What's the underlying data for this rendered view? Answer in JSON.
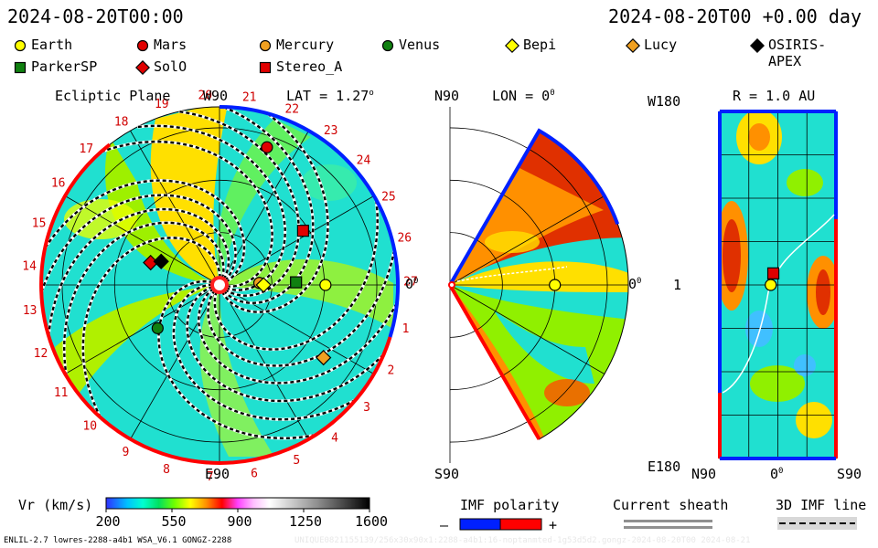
{
  "header": {
    "left_time": "2024-08-20T00:00",
    "right_time": "2024-08-20T00 +0.00 day"
  },
  "legend": [
    {
      "name": "Earth",
      "marker": "circle",
      "color": "#ffff00"
    },
    {
      "name": "Mars",
      "marker": "circle",
      "color": "#e00000"
    },
    {
      "name": "Mercury",
      "marker": "circle",
      "color": "#f0a020"
    },
    {
      "name": "Venus",
      "marker": "circle",
      "color": "#108010"
    },
    {
      "name": "Bepi",
      "marker": "diamond",
      "color": "#ffff00"
    },
    {
      "name": "Lucy",
      "marker": "diamond",
      "color": "#f0a020"
    },
    {
      "name": "OSIRIS-APEX",
      "marker": "diamond",
      "color": "#000000"
    },
    {
      "name": "ParkerSP",
      "marker": "square",
      "color": "#108010"
    },
    {
      "name": "SolO",
      "marker": "diamond",
      "color": "#e00000"
    },
    {
      "name": "Stereo_A",
      "marker": "square",
      "color": "#e00000"
    }
  ],
  "panels": {
    "ecliptic": {
      "title": "Ecliptic Plane",
      "lat_label": "LAT = 1.27",
      "lat_deg": "o",
      "top_label": "W90",
      "bottom_label": "E90",
      "right_label": "0",
      "right_deg": "0",
      "carrington_labels": [
        "1",
        "2",
        "3",
        "4",
        "5",
        "6",
        "7",
        "8",
        "9",
        "10",
        "11",
        "12",
        "13",
        "14",
        "15",
        "16",
        "17",
        "18",
        "19",
        "20",
        "21",
        "22",
        "23",
        "24",
        "25",
        "26",
        "27"
      ]
    },
    "meridional": {
      "title": "LON = 0",
      "title_deg": "0",
      "top_label": "N90",
      "bottom_label": "S90",
      "right_label": "0",
      "right_deg": "0"
    },
    "radial": {
      "title": "R = 1.0 AU",
      "top_left_label": "W180",
      "bottom_left_label": "E180",
      "mid_left_label": "1",
      "bottom_labels": [
        "N90",
        "0",
        "S90"
      ],
      "bottom_mid_deg": "0"
    }
  },
  "colorbar": {
    "title": "Vr (km/s)",
    "ticks": [
      "200",
      "550",
      "900",
      "1250",
      "1600"
    ]
  },
  "imf": {
    "polarity_title": "IMF polarity",
    "minus": "–",
    "plus": "+",
    "sheath_title": "Current sheath",
    "line_title": "3D IMF line"
  },
  "footer": {
    "model_text": "ENLIL-2.7 lowres-2288-a4b1 WSA_V6.1 GONGZ-2288",
    "watermark": "UNIQUE0821155139/256x30x90x1:2288-a4b1:16-noptanmted-1g53d5d2.gongz-2024-08-20T00    2024-08-21"
  },
  "chart_data": {
    "type": "heatmap",
    "title": "Vr (km/s)",
    "colorbar_range": [
      200,
      1600
    ],
    "colorbar_ticks": [
      200,
      550,
      900,
      1250,
      1600
    ],
    "ecliptic_bodies": [
      {
        "name": "Mars",
        "r_au": 1.39,
        "lon_deg": 71
      },
      {
        "name": "Stereo_A",
        "r_au": 0.95,
        "lon_deg": 33
      },
      {
        "name": "SolO",
        "r_au": 0.69,
        "lon_deg": 162
      },
      {
        "name": "OSIRIS-APEX",
        "r_au": 0.6,
        "lon_deg": 158
      },
      {
        "name": "Mercury",
        "r_au": 0.38,
        "lon_deg": 3
      },
      {
        "name": "Bepi",
        "r_au": 0.42,
        "lon_deg": 0
      },
      {
        "name": "ParkerSP",
        "r_au": 0.73,
        "lon_deg": 2
      },
      {
        "name": "Earth",
        "r_au": 1.01,
        "lon_deg": 0
      },
      {
        "name": "Venus",
        "r_au": 0.72,
        "lon_deg": 215
      },
      {
        "name": "Lucy",
        "r_au": 1.21,
        "lon_deg": 325
      }
    ],
    "meridional_bodies": [
      {
        "name": "Earth",
        "r_au": 1.0,
        "lat_deg": 0
      }
    ],
    "radial_bodies": [
      {
        "name": "Stereo_A",
        "lat_deg": 5,
        "lon_deg": 12
      },
      {
        "name": "Earth",
        "lat_deg": 1,
        "lon_deg": 0
      }
    ]
  }
}
